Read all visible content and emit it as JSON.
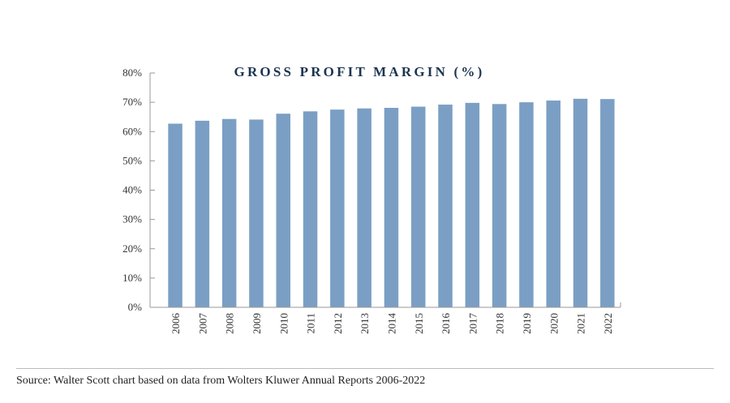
{
  "chart_data": {
    "type": "bar",
    "title": "GROSS PROFIT MARGIN (%)",
    "xlabel": "",
    "ylabel": "",
    "categories": [
      "2006",
      "2007",
      "2008",
      "2009",
      "2010",
      "2011",
      "2012",
      "2013",
      "2014",
      "2015",
      "2016",
      "2017",
      "2018",
      "2019",
      "2020",
      "2021",
      "2022"
    ],
    "values": [
      62.7,
      63.7,
      64.3,
      64.1,
      66.1,
      66.9,
      67.5,
      67.9,
      68.1,
      68.5,
      69.2,
      69.8,
      69.4,
      70.0,
      70.6,
      71.2,
      71.1
    ],
    "ylim": [
      0,
      80
    ],
    "yticks": [
      "0%",
      "10%",
      "20%",
      "30%",
      "40%",
      "50%",
      "60%",
      "70%",
      "80%"
    ],
    "grid": false,
    "bar_color": "#7b9fc4",
    "title_color": "#1c3451"
  },
  "source": "Source: Walter Scott chart based on data from Wolters Kluwer Annual Reports 2006-2022"
}
